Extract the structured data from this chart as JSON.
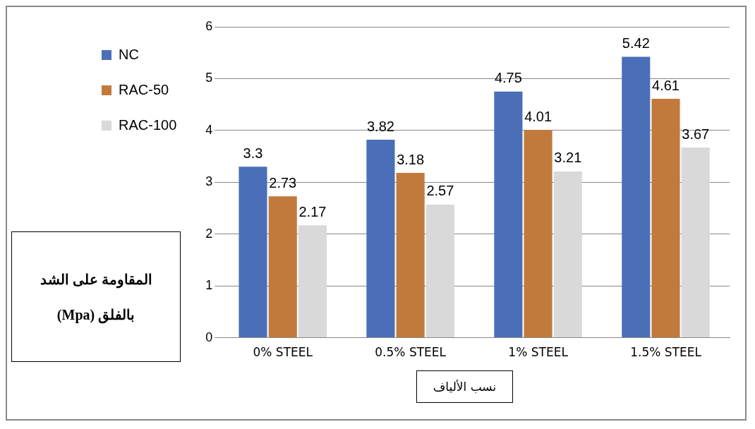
{
  "chart_data": {
    "type": "bar",
    "categories": [
      "0% STEEL",
      "0.5% STEEL",
      "1% STEEL",
      "1.5% STEEL"
    ],
    "series": [
      {
        "name": "NC",
        "color": "#4a6fb8",
        "values": [
          3.3,
          3.82,
          4.75,
          5.42
        ]
      },
      {
        "name": "RAC-50",
        "color": "#c27a3c",
        "values": [
          2.73,
          3.18,
          4.01,
          4.61
        ]
      },
      {
        "name": "RAC-100",
        "color": "#d9d9d9",
        "values": [
          2.17,
          2.57,
          3.21,
          3.67
        ]
      }
    ],
    "ylim": [
      0,
      6
    ],
    "yticks": [
      0,
      1,
      2,
      3,
      4,
      5,
      6
    ],
    "grid": "y",
    "legend": "left",
    "data_labels": true,
    "ylabel": "المقاومة على الشد بالفلق (Mpa)",
    "xlabel": "نسب الألياف"
  }
}
